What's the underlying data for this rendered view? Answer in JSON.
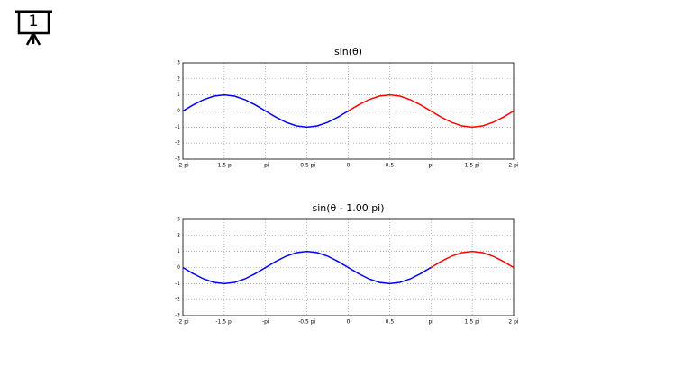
{
  "slide_number": "1",
  "chart_data": [
    {
      "type": "line",
      "title": "sin(θ)",
      "x": [
        -2,
        -1.875,
        -1.75,
        -1.625,
        -1.5,
        -1.375,
        -1.25,
        -1.125,
        -1,
        -0.875,
        -0.75,
        -0.625,
        -0.5,
        -0.375,
        -0.25,
        -0.125,
        0,
        0.125,
        0.25,
        0.375,
        0.5,
        0.625,
        0.75,
        0.875,
        1,
        1.125,
        1.25,
        1.375,
        1.5,
        1.625,
        1.75,
        1.875,
        2
      ],
      "series": [
        {
          "color": "#0000ff",
          "values": [
            0,
            0.383,
            0.707,
            0.924,
            1,
            0.924,
            0.707,
            0.383,
            0,
            -0.383,
            -0.707,
            -0.924,
            -1,
            -0.924,
            -0.707,
            -0.383,
            0,
            null,
            null,
            null,
            null,
            null,
            null,
            null,
            null,
            null,
            null,
            null,
            null,
            null,
            null,
            null,
            null
          ]
        },
        {
          "color": "#ff0000",
          "values": [
            null,
            null,
            null,
            null,
            null,
            null,
            null,
            null,
            null,
            null,
            null,
            null,
            null,
            null,
            null,
            null,
            0,
            0.383,
            0.707,
            0.924,
            1,
            0.924,
            0.707,
            0.383,
            0,
            -0.383,
            -0.707,
            -0.924,
            -1,
            -0.924,
            -0.707,
            -0.383,
            0
          ]
        }
      ],
      "xlim": [
        -2,
        2
      ],
      "xticks": [
        {
          "value": -2,
          "label": "-2 pi"
        },
        {
          "value": -1.5,
          "label": "-1.5 pi"
        },
        {
          "value": -1,
          "label": "-pi"
        },
        {
          "value": -0.5,
          "label": "-0.5 pi"
        },
        0,
        0.5,
        {
          "value": 1,
          "label": "pi"
        },
        {
          "value": 1.5,
          "label": "1.5 pi"
        },
        {
          "value": 2,
          "label": "2 pi"
        }
      ],
      "ylim": [
        -3,
        3
      ],
      "yticks": [
        -3,
        -2,
        -1,
        0,
        1,
        2,
        3
      ],
      "grid": true
    },
    {
      "type": "line",
      "title": "sin(θ - 1.00 pi)",
      "x": [
        -2,
        -1.875,
        -1.75,
        -1.625,
        -1.5,
        -1.375,
        -1.25,
        -1.125,
        -1,
        -0.875,
        -0.75,
        -0.625,
        -0.5,
        -0.375,
        -0.25,
        -0.125,
        0,
        0.125,
        0.25,
        0.375,
        0.5,
        0.625,
        0.75,
        0.875,
        1,
        1.125,
        1.25,
        1.375,
        1.5,
        1.625,
        1.75,
        1.875,
        2
      ],
      "series": [
        {
          "color": "#0000ff",
          "values": [
            0,
            -0.383,
            -0.707,
            -0.924,
            -1,
            -0.924,
            -0.707,
            -0.383,
            0,
            0.383,
            0.707,
            0.924,
            1,
            0.924,
            0.707,
            0.383,
            0,
            -0.383,
            -0.707,
            -0.924,
            -1,
            -0.924,
            -0.707,
            -0.383,
            0,
            null,
            null,
            null,
            null,
            null,
            null,
            null,
            null
          ]
        },
        {
          "color": "#ff0000",
          "values": [
            null,
            null,
            null,
            null,
            null,
            null,
            null,
            null,
            null,
            null,
            null,
            null,
            null,
            null,
            null,
            null,
            null,
            null,
            null,
            null,
            null,
            null,
            null,
            null,
            0,
            0.383,
            0.707,
            0.924,
            1,
            0.924,
            0.707,
            0.383,
            0
          ]
        }
      ],
      "xlim": [
        -2,
        2
      ],
      "xticks": [
        {
          "value": -2,
          "label": "-2 pi"
        },
        {
          "value": -1.5,
          "label": "-1.5 pi"
        },
        {
          "value": -1,
          "label": "-pi"
        },
        {
          "value": -0.5,
          "label": "-0.5 pi"
        },
        0,
        0.5,
        {
          "value": 1,
          "label": "pi"
        },
        {
          "value": 1.5,
          "label": "1.5 pi"
        },
        {
          "value": 2,
          "label": "2 pi"
        }
      ],
      "ylim": [
        -3,
        3
      ],
      "yticks": [
        -3,
        -2,
        -1,
        0,
        1,
        2,
        3
      ],
      "grid": true
    }
  ]
}
